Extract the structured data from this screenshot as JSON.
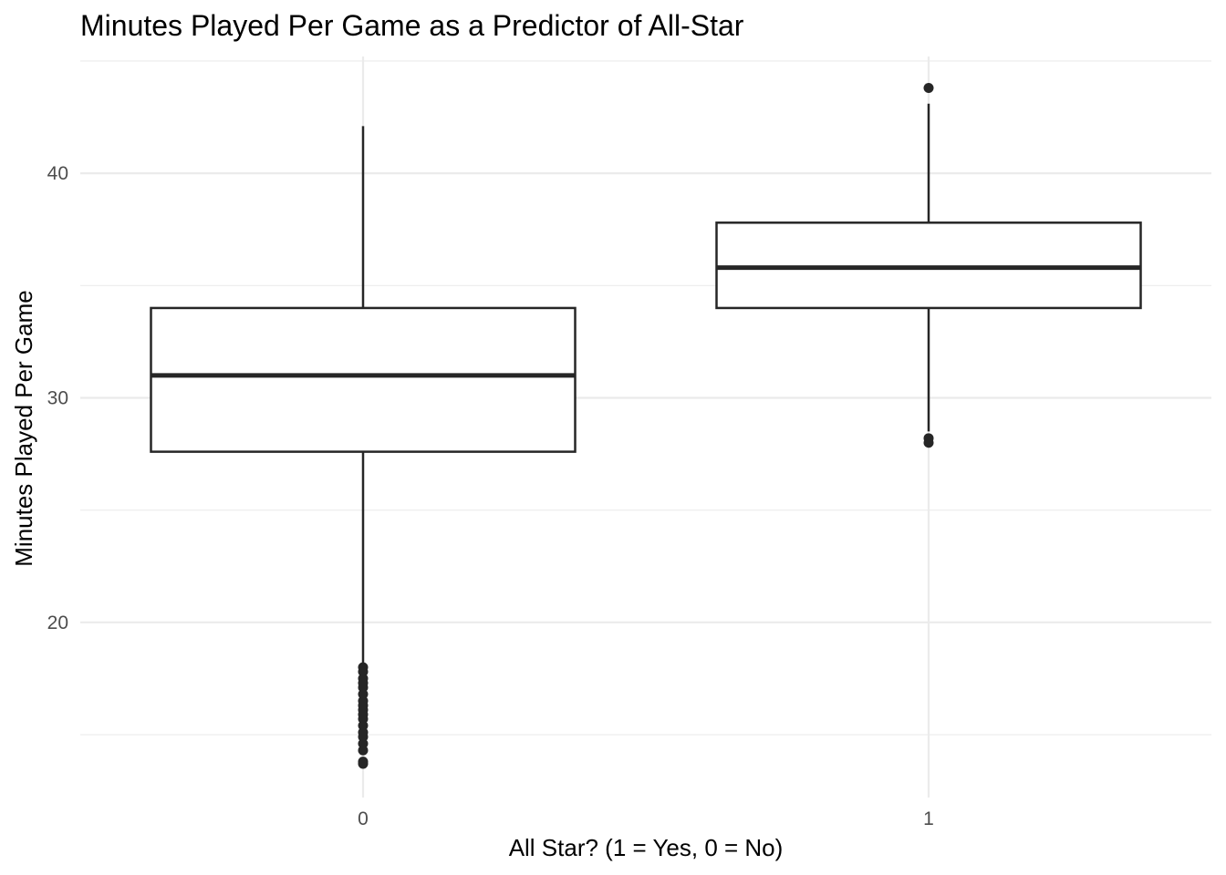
{
  "chart_data": {
    "type": "box",
    "title": "Minutes Played Per Game as a Predictor of All-Star",
    "xlabel": "All Star? (1 = Yes, 0 = No)",
    "ylabel": "Minutes Played Per Game",
    "categories": [
      "0",
      "1"
    ],
    "y_ticks": [
      20,
      30,
      40
    ],
    "ylim": [
      12.2,
      45.2
    ],
    "grid": true,
    "boxes": [
      {
        "category": "0",
        "whisker_low": 18.1,
        "q1": 27.6,
        "median": 31.0,
        "q3": 34.0,
        "whisker_high": 42.1,
        "outliers": [
          18.0,
          17.8,
          17.5,
          17.3,
          17.1,
          16.8,
          16.5,
          16.3,
          16.1,
          15.9,
          15.7,
          15.4,
          15.1,
          14.9,
          14.6,
          14.3,
          13.8,
          13.7
        ]
      },
      {
        "category": "1",
        "whisker_low": 28.5,
        "q1": 34.0,
        "median": 35.8,
        "q3": 37.8,
        "whisker_high": 43.1,
        "outliers": [
          43.8,
          28.2,
          28.0
        ]
      }
    ],
    "colors": {
      "box_stroke": "#262626",
      "box_fill": "#ffffff",
      "grid": "#ebebeb",
      "tick_text": "#4d4d4d",
      "text": "#000000"
    }
  }
}
